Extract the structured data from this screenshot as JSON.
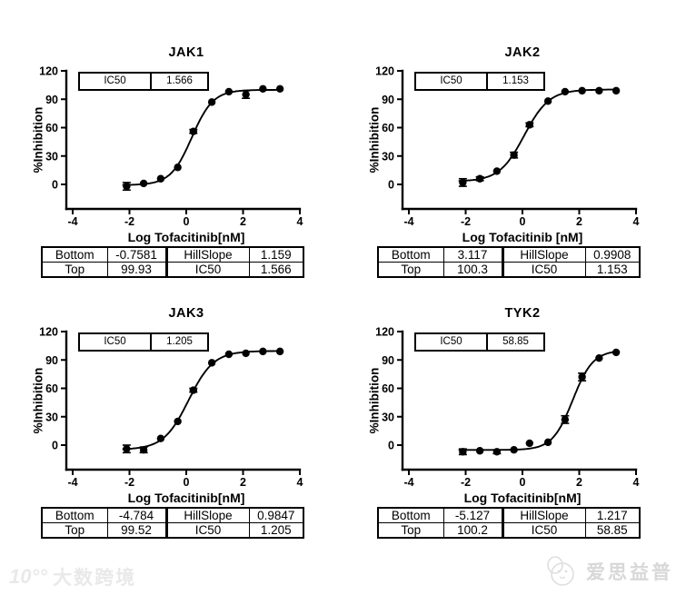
{
  "page": {
    "background": "#ffffff",
    "text_color": "#000000"
  },
  "watermarks": {
    "left": {
      "logo": "10°°",
      "text": "大数跨境",
      "color": "#e9e9e9"
    },
    "right": {
      "text": "爱思益普",
      "color": "#d8d8d8",
      "icon": "panda-logo"
    }
  },
  "chart_data": [
    {
      "type": "scatter",
      "title": "JAK1",
      "xlabel": "Log Tofacitinib[nM]",
      "ylabel": "%Inhibition",
      "xlim": [
        -4,
        4
      ],
      "ylim": [
        -26,
        120
      ],
      "x_ticks": [
        -4,
        -2,
        0,
        2,
        4
      ],
      "y_ticks": [
        0,
        30,
        60,
        90,
        120
      ],
      "grid": false,
      "legend": "none",
      "inset_label": "IC50",
      "inset_value": "1.566",
      "fit": {
        "bottom": -0.7581,
        "top": 99.93,
        "hillslope": 1.159,
        "ic50": 1.566
      },
      "points": {
        "x": [
          -2.1,
          -1.5,
          -0.9,
          -0.3,
          0.25,
          0.9,
          1.5,
          2.1,
          2.7,
          3.3
        ],
        "y": [
          -2,
          1,
          6,
          18,
          56,
          87,
          98,
          95,
          101,
          101
        ],
        "err": [
          4,
          0,
          0,
          0,
          2,
          0,
          0,
          4,
          0,
          0
        ]
      },
      "table": [
        [
          "Bottom",
          "-0.7581",
          "HillSlope",
          "1.159"
        ],
        [
          "Top",
          "99.93",
          "IC50",
          "1.566"
        ]
      ]
    },
    {
      "type": "scatter",
      "title": "JAK2",
      "xlabel": "Log Tofacitinib [nM]",
      "ylabel": "%Inhibition",
      "xlim": [
        -4,
        4
      ],
      "ylim": [
        -26,
        120
      ],
      "x_ticks": [
        -4,
        -2,
        0,
        2,
        4
      ],
      "y_ticks": [
        0,
        30,
        60,
        90,
        120
      ],
      "grid": false,
      "legend": "none",
      "inset_label": "IC50",
      "inset_value": "1.153",
      "fit": {
        "bottom": 3.117,
        "top": 100.3,
        "hillslope": 0.9908,
        "ic50": 1.153
      },
      "points": {
        "x": [
          -2.1,
          -1.5,
          -0.9,
          -0.3,
          0.25,
          0.9,
          1.5,
          2.1,
          2.7,
          3.3
        ],
        "y": [
          2,
          6,
          14,
          31,
          63,
          88,
          98,
          99,
          99,
          99
        ],
        "err": [
          4,
          2,
          0,
          3,
          2,
          0,
          0,
          0,
          0,
          0
        ]
      },
      "table": [
        [
          "Bottom",
          "3.117",
          "HillSlope",
          "0.9908"
        ],
        [
          "Top",
          "100.3",
          "IC50",
          "1.153"
        ]
      ]
    },
    {
      "type": "scatter",
      "title": "JAK3",
      "xlabel": "Log Tofacitinib[nM]",
      "ylabel": "%Inhibition",
      "xlim": [
        -4,
        4
      ],
      "ylim": [
        -26,
        120
      ],
      "x_ticks": [
        -4,
        -2,
        0,
        2,
        4
      ],
      "y_ticks": [
        0,
        30,
        60,
        90,
        120
      ],
      "grid": false,
      "legend": "none",
      "inset_label": "IC50",
      "inset_value": "1.205",
      "fit": {
        "bottom": -4.784,
        "top": 99.52,
        "hillslope": 0.9847,
        "ic50": 1.205
      },
      "points": {
        "x": [
          -2.1,
          -1.5,
          -0.9,
          -0.3,
          0.25,
          0.9,
          1.5,
          2.1,
          2.7,
          3.3
        ],
        "y": [
          -4,
          -5,
          7,
          25,
          58,
          87,
          96,
          97,
          99,
          99
        ],
        "err": [
          4,
          3,
          0,
          0,
          2,
          0,
          0,
          0,
          0,
          0
        ]
      },
      "table": [
        [
          "Bottom",
          "-4.784",
          "HillSlope",
          "0.9847"
        ],
        [
          "Top",
          "99.52",
          "IC50",
          "1.205"
        ]
      ]
    },
    {
      "type": "scatter",
      "title": "TYK2",
      "xlabel": "Log Tofacitinib[nM]",
      "ylabel": "%Inhibition",
      "xlim": [
        -4,
        4
      ],
      "ylim": [
        -26,
        120
      ],
      "x_ticks": [
        -4,
        -2,
        0,
        2,
        4
      ],
      "y_ticks": [
        0,
        30,
        60,
        90,
        120
      ],
      "grid": false,
      "legend": "none",
      "inset_label": "IC50",
      "inset_value": "58.85",
      "fit": {
        "bottom": -5.127,
        "top": 100.2,
        "hillslope": 1.217,
        "ic50": 58.85
      },
      "points": {
        "x": [
          -2.1,
          -1.5,
          -0.9,
          -0.3,
          0.25,
          0.9,
          1.5,
          2.1,
          2.7,
          3.3
        ],
        "y": [
          -7,
          -6,
          -7,
          -5,
          2,
          3,
          27,
          72,
          92,
          98
        ],
        "err": [
          3,
          0,
          2,
          0,
          0,
          0,
          4,
          4,
          0,
          0
        ]
      },
      "table": [
        [
          "Bottom",
          "-5.127",
          "HillSlope",
          "1.217"
        ],
        [
          "Top",
          "100.2",
          "IC50",
          "58.85"
        ]
      ]
    }
  ]
}
